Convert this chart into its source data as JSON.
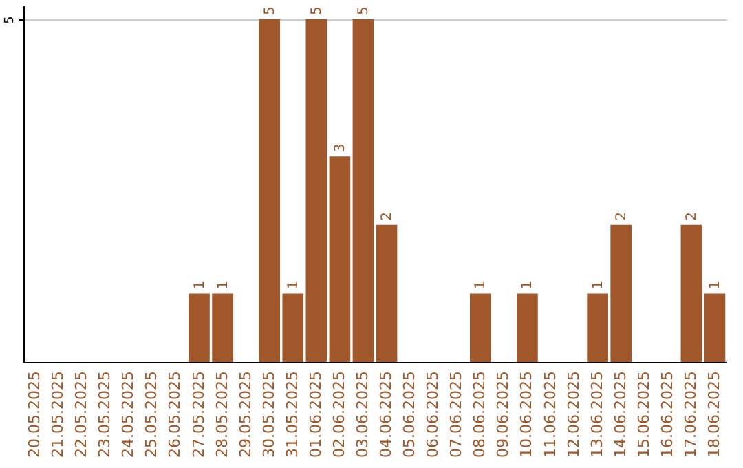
{
  "chart_data": {
    "type": "bar",
    "categories": [
      "20.05.2025",
      "21.05.2025",
      "22.05.2025",
      "23.05.2025",
      "24.05.2025",
      "25.05.2025",
      "26.05.2025",
      "27.05.2025",
      "28.05.2025",
      "29.05.2025",
      "30.05.2025",
      "31.05.2025",
      "01.06.2025",
      "02.06.2025",
      "03.06.2025",
      "04.06.2025",
      "05.06.2025",
      "06.06.2025",
      "07.06.2025",
      "08.06.2025",
      "09.06.2025",
      "10.06.2025",
      "11.06.2025",
      "12.06.2025",
      "13.06.2025",
      "14.06.2025",
      "15.06.2025",
      "16.06.2025",
      "17.06.2025",
      "18.06.2025"
    ],
    "values": [
      0,
      0,
      0,
      0,
      0,
      0,
      0,
      1,
      1,
      0,
      5,
      1,
      5,
      3,
      5,
      2,
      0,
      0,
      0,
      1,
      0,
      1,
      0,
      0,
      1,
      2,
      0,
      0,
      2,
      1
    ],
    "value_labels": [
      null,
      null,
      null,
      null,
      null,
      null,
      null,
      "1",
      "1",
      null,
      "5",
      "1",
      "5",
      "3",
      "5",
      "2",
      null,
      null,
      null,
      "1",
      null,
      "1",
      null,
      null,
      "1",
      "2",
      null,
      null,
      "2",
      "1"
    ],
    "color": "#a0582a",
    "ylim": [
      0,
      5.2
    ],
    "yticks": [
      5
    ],
    "grid": "y"
  }
}
